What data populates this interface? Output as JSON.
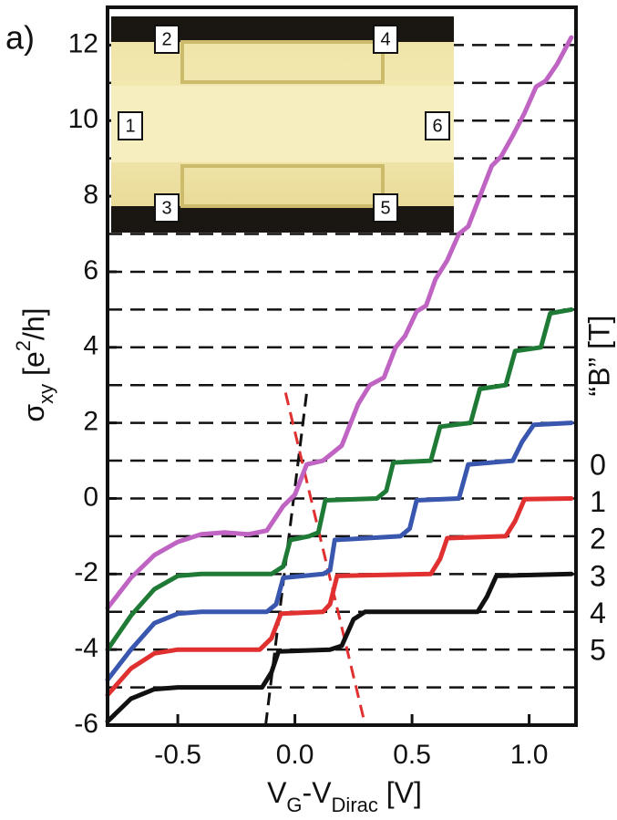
{
  "chart_data": {
    "type": "line",
    "panel_label": "a)",
    "xlabel": [
      {
        "text": "V"
      },
      {
        "text": "G",
        "sub": true
      },
      {
        "text": "-V"
      },
      {
        "text": "Dirac",
        "sub": true
      },
      {
        "text": " [V]"
      }
    ],
    "ylabel": [
      {
        "text": "σ"
      },
      {
        "text": "xy",
        "sub": true
      },
      {
        "text": " [e"
      },
      {
        "text": "2",
        "sup": true
      },
      {
        "text": "/h]"
      }
    ],
    "legend_title": "“B” [T]",
    "legend_values": [
      0,
      1,
      2,
      3,
      4,
      5
    ],
    "xlim": [
      -0.8,
      1.2
    ],
    "ylim": [
      -6,
      13
    ],
    "xticks": [
      {
        "value": -0.5,
        "label": "-0.5"
      },
      {
        "value": 0,
        "label": "0.0"
      },
      {
        "value": 0.5,
        "label": "0.5"
      },
      {
        "value": 1,
        "label": "1.0"
      }
    ],
    "yticks": [
      -6,
      -4,
      -2,
      0,
      2,
      4,
      6,
      8,
      10,
      12
    ],
    "grid_levels": [
      -5,
      -4,
      -3,
      -2,
      -1,
      0,
      1,
      2,
      3,
      4,
      5,
      6,
      7,
      8,
      9,
      10,
      11,
      12
    ],
    "series": [
      {
        "color": "#c064c4",
        "x": [
          -0.8,
          -0.7,
          -0.6,
          -0.5,
          -0.4,
          -0.3,
          -0.2,
          -0.12,
          -0.05,
          0.0,
          0.05,
          0.12,
          0.2,
          0.27,
          0.32,
          0.38,
          0.43,
          0.47,
          0.52,
          0.56,
          0.6,
          0.65,
          0.7,
          0.74,
          0.79,
          0.84,
          0.88,
          0.93,
          0.98,
          1.03,
          1.07,
          1.12,
          1.18
        ],
        "values": [
          -2.9,
          -2.1,
          -1.5,
          -1.15,
          -0.95,
          -0.9,
          -0.95,
          -0.85,
          -0.2,
          0.1,
          0.9,
          1.0,
          1.4,
          2.5,
          3.0,
          3.2,
          4.0,
          4.3,
          4.95,
          5.1,
          5.8,
          6.3,
          7.0,
          7.2,
          8.0,
          8.8,
          9.05,
          9.6,
          10.2,
          10.9,
          11.05,
          11.5,
          12.2
        ]
      },
      {
        "color": "#1f7a36",
        "x": [
          -0.8,
          -0.7,
          -0.6,
          -0.5,
          -0.4,
          -0.1,
          -0.05,
          -0.02,
          0.06,
          0.1,
          0.13,
          0.35,
          0.39,
          0.42,
          0.58,
          0.62,
          0.75,
          0.79,
          0.9,
          0.94,
          1.05,
          1.09,
          1.18
        ],
        "values": [
          -4.0,
          -3.1,
          -2.4,
          -2.05,
          -2.0,
          -2.0,
          -1.8,
          -1.1,
          -1.0,
          -0.9,
          -0.05,
          0.0,
          0.2,
          0.95,
          1.0,
          1.9,
          2.0,
          2.9,
          3.0,
          3.9,
          4.0,
          4.9,
          5.0
        ]
      },
      {
        "color": "#3a57b0",
        "x": [
          -0.8,
          -0.7,
          -0.6,
          -0.5,
          -0.4,
          -0.12,
          -0.08,
          -0.05,
          0.12,
          0.15,
          0.17,
          0.45,
          0.49,
          0.52,
          0.7,
          0.74,
          0.93,
          0.97,
          1.02,
          1.18
        ],
        "values": [
          -4.8,
          -4.0,
          -3.3,
          -3.05,
          -3.0,
          -3.0,
          -2.8,
          -2.1,
          -2.0,
          -1.9,
          -1.1,
          -1.0,
          -0.8,
          -0.05,
          0.0,
          0.9,
          1.0,
          1.5,
          1.95,
          2.0
        ]
      },
      {
        "color": "#e03030",
        "x": [
          -0.8,
          -0.7,
          -0.6,
          -0.5,
          -0.15,
          -0.1,
          -0.06,
          0.12,
          0.15,
          0.18,
          0.58,
          0.62,
          0.65,
          0.9,
          0.94,
          0.98,
          1.18
        ],
        "values": [
          -5.2,
          -4.5,
          -4.1,
          -4.0,
          -4.0,
          -3.7,
          -3.05,
          -3.0,
          -2.8,
          -2.05,
          -2.0,
          -1.6,
          -1.05,
          -1.0,
          -0.6,
          -0.02,
          0.0
        ]
      },
      {
        "color": "#111111",
        "x": [
          -0.8,
          -0.7,
          -0.6,
          -0.5,
          -0.14,
          -0.1,
          -0.07,
          0.15,
          0.2,
          0.25,
          0.3,
          0.78,
          0.82,
          0.86,
          1.18
        ],
        "values": [
          -5.9,
          -5.3,
          -5.05,
          -5.0,
          -5.0,
          -4.6,
          -4.05,
          -4.0,
          -3.9,
          -3.2,
          -3.0,
          -3.0,
          -2.6,
          -2.05,
          -2.0
        ]
      }
    ],
    "guide_lines": [
      {
        "color": "#111111",
        "x": [
          -0.125,
          0.05
        ],
        "values": [
          -6,
          2.8
        ]
      },
      {
        "color": "#e03030",
        "x": [
          -0.04,
          0.3
        ],
        "values": [
          2.8,
          -6
        ]
      }
    ],
    "inset_labels": [
      "1",
      "2",
      "3",
      "4",
      "5",
      "6"
    ]
  }
}
